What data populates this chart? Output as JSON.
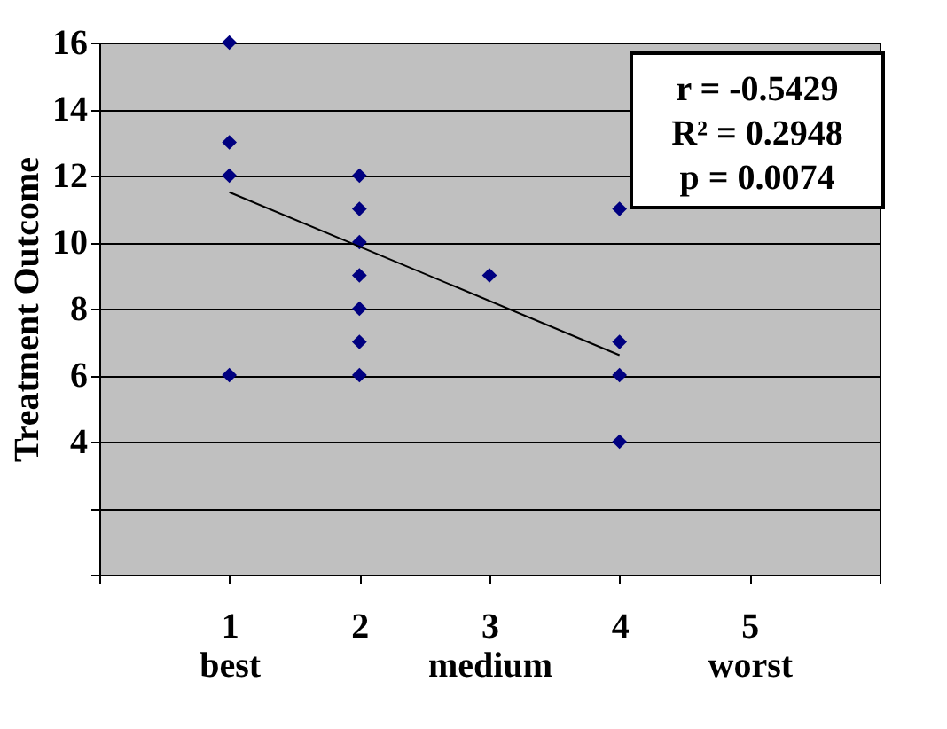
{
  "chart_data": {
    "type": "scatter",
    "ylabel": "Treatment Outcome",
    "series": [
      {
        "color": "#000080",
        "marker": "diamond",
        "x": [
          1,
          1,
          1,
          1,
          2,
          2,
          2,
          2,
          2,
          2,
          2,
          3,
          4,
          4,
          4,
          4
        ],
        "values": [
          16,
          13,
          12,
          6,
          12,
          11,
          10,
          9,
          8,
          7,
          6,
          9,
          11,
          7,
          6,
          4
        ]
      },
      {
        "type": "line",
        "color": "#000000",
        "line_style": "solid",
        "marker": "none",
        "x": [
          1,
          4
        ],
        "values": [
          11.5,
          6.6
        ]
      }
    ],
    "xlim": [
      0,
      6
    ],
    "xticks": [
      {
        "value": 0,
        "label": null
      },
      {
        "value": 1,
        "label": "1\nbest"
      },
      {
        "value": 2,
        "label": "2"
      },
      {
        "value": 3,
        "label": "3\nmedium"
      },
      {
        "value": 4,
        "label": "4"
      },
      {
        "value": 5,
        "label": "5\nworst"
      },
      {
        "value": 6,
        "label": null
      }
    ],
    "ylim": [
      0,
      16
    ],
    "yticks": [
      {
        "value": 0,
        "label": null
      },
      {
        "value": 2,
        "label": null
      },
      4,
      6,
      8,
      10,
      12,
      14,
      16
    ],
    "grid": "y",
    "annotations": [
      "r = -0.5429",
      "R² = 0.2948",
      "p = 0.0074"
    ]
  }
}
